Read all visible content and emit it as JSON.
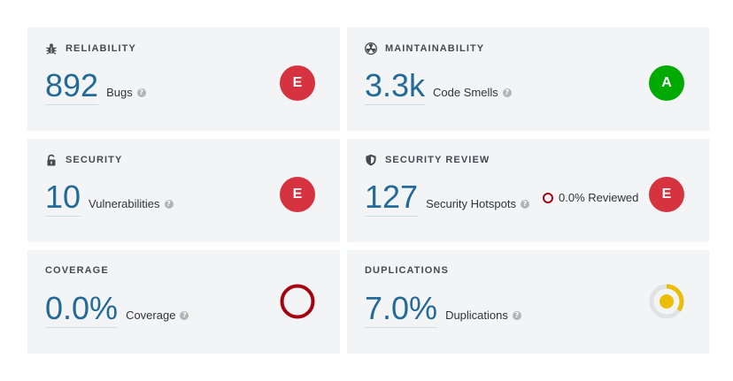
{
  "reliability": {
    "title": "RELIABILITY",
    "icon": "bug-icon",
    "value": "892",
    "label": "Bugs",
    "rating": "E",
    "rating_color": "#d4333f"
  },
  "maintainability": {
    "title": "MAINTAINABILITY",
    "icon": "radiation-icon",
    "value": "3.3k",
    "label": "Code Smells",
    "rating": "A",
    "rating_color": "#00aa00"
  },
  "security": {
    "title": "SECURITY",
    "icon": "lock-open-icon",
    "value": "10",
    "label": "Vulnerabilities",
    "rating": "E",
    "rating_color": "#d4333f"
  },
  "security_review": {
    "title": "SECURITY REVIEW",
    "icon": "shield-icon",
    "value": "127",
    "label": "Security Hotspots",
    "reviewed": "0.0% Reviewed",
    "reviewed_percent": 0.0,
    "rating": "E",
    "rating_color": "#d4333f"
  },
  "coverage": {
    "title": "COVERAGE",
    "value": "0.0%",
    "label": "Coverage",
    "percent": 0.0,
    "gauge_color": "#a4030f"
  },
  "duplications": {
    "title": "DUPLICATIONS",
    "value": "7.0%",
    "label": "Duplications",
    "percent": 7.0,
    "gauge_color": "#eabe06"
  },
  "help_glyph": "?"
}
